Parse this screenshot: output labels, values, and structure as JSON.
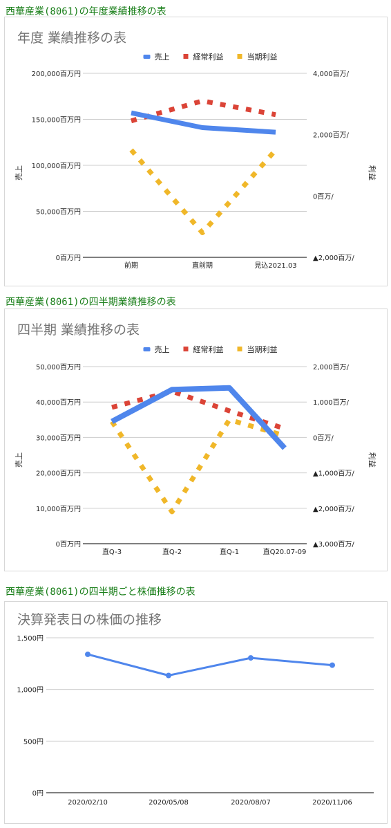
{
  "sections": [
    {
      "heading": "西華産業(8061)の年度業績推移の表",
      "chart_data": {
        "type": "line",
        "title": "年度 業績推移の表",
        "categories": [
          "前期",
          "直前期",
          "見込2021.03"
        ],
        "ylabel_left": "売上",
        "ylabel_right": "利益",
        "left_axis": {
          "ticks": [
            "0百万円",
            "50,000百万円",
            "100,000百万円",
            "150,000百万円",
            "200,000百万円"
          ],
          "ylim": [
            0,
            200000
          ]
        },
        "right_axis": {
          "ticks": [
            "▲2,000百万/",
            "0百万/",
            "2,000百万/",
            "4,000百万/"
          ],
          "ylim": [
            -2000,
            4000
          ]
        },
        "legend_position": "top",
        "series": [
          {
            "name": "売上",
            "axis": "left",
            "style": "solid",
            "color": "#4f86ec",
            "values": [
              157000,
              141000,
              136000
            ]
          },
          {
            "name": "経常利益",
            "axis": "right",
            "style": "dotted",
            "color": "#db4437",
            "values": [
              2450,
              3100,
              2650
            ]
          },
          {
            "name": "当期利益",
            "axis": "right",
            "style": "dotted",
            "color": "#f0b729",
            "values": [
              1500,
              -1200,
              1500
            ]
          }
        ]
      }
    },
    {
      "heading": "西華産業(8061)の四半期業績推移の表",
      "chart_data": {
        "type": "line",
        "title": "四半期 業績推移の表",
        "categories": [
          "直Q-3",
          "直Q-2",
          "直Q-1",
          "直Q20.07-09"
        ],
        "ylabel_left": "売上",
        "ylabel_right": "利益",
        "left_axis": {
          "ticks": [
            "0百万円",
            "10,000百万円",
            "20,000百万円",
            "30,000百万円",
            "40,000百万円",
            "50,000百万円"
          ],
          "ylim": [
            0,
            50000
          ]
        },
        "right_axis": {
          "ticks": [
            "▲3,000百万/",
            "▲2,000百万/",
            "▲1,000百万/",
            "0百万/",
            "1,000百万/",
            "2,000百万/"
          ],
          "ylim": [
            -3000,
            2000
          ]
        },
        "legend_position": "top",
        "series": [
          {
            "name": "売上",
            "axis": "left",
            "style": "solid",
            "color": "#4f86ec",
            "values": [
              34500,
              43500,
              44000,
              27000
            ]
          },
          {
            "name": "経常利益",
            "axis": "right",
            "style": "dotted",
            "color": "#db4437",
            "values": [
              850,
              1300,
              750,
              250
            ]
          },
          {
            "name": "当期利益",
            "axis": "right",
            "style": "dotted",
            "color": "#f0b729",
            "values": [
              450,
              -2100,
              500,
              50
            ]
          }
        ]
      }
    },
    {
      "heading": "西華産業(8061)の四半期ごと株価推移の表",
      "chart_data": {
        "type": "line",
        "title": "決算発表日の株価の推移",
        "categories": [
          "2020/02/10",
          "2020/05/08",
          "2020/08/07",
          "2020/11/06"
        ],
        "left_axis": {
          "ticks": [
            "0円",
            "500円",
            "1,000円",
            "1,500円"
          ],
          "ylim": [
            0,
            1500
          ]
        },
        "series": [
          {
            "color": "#4f86ec",
            "style": "solid-markers",
            "values": [
              1340,
              1135,
              1305,
              1235
            ]
          }
        ]
      }
    }
  ]
}
